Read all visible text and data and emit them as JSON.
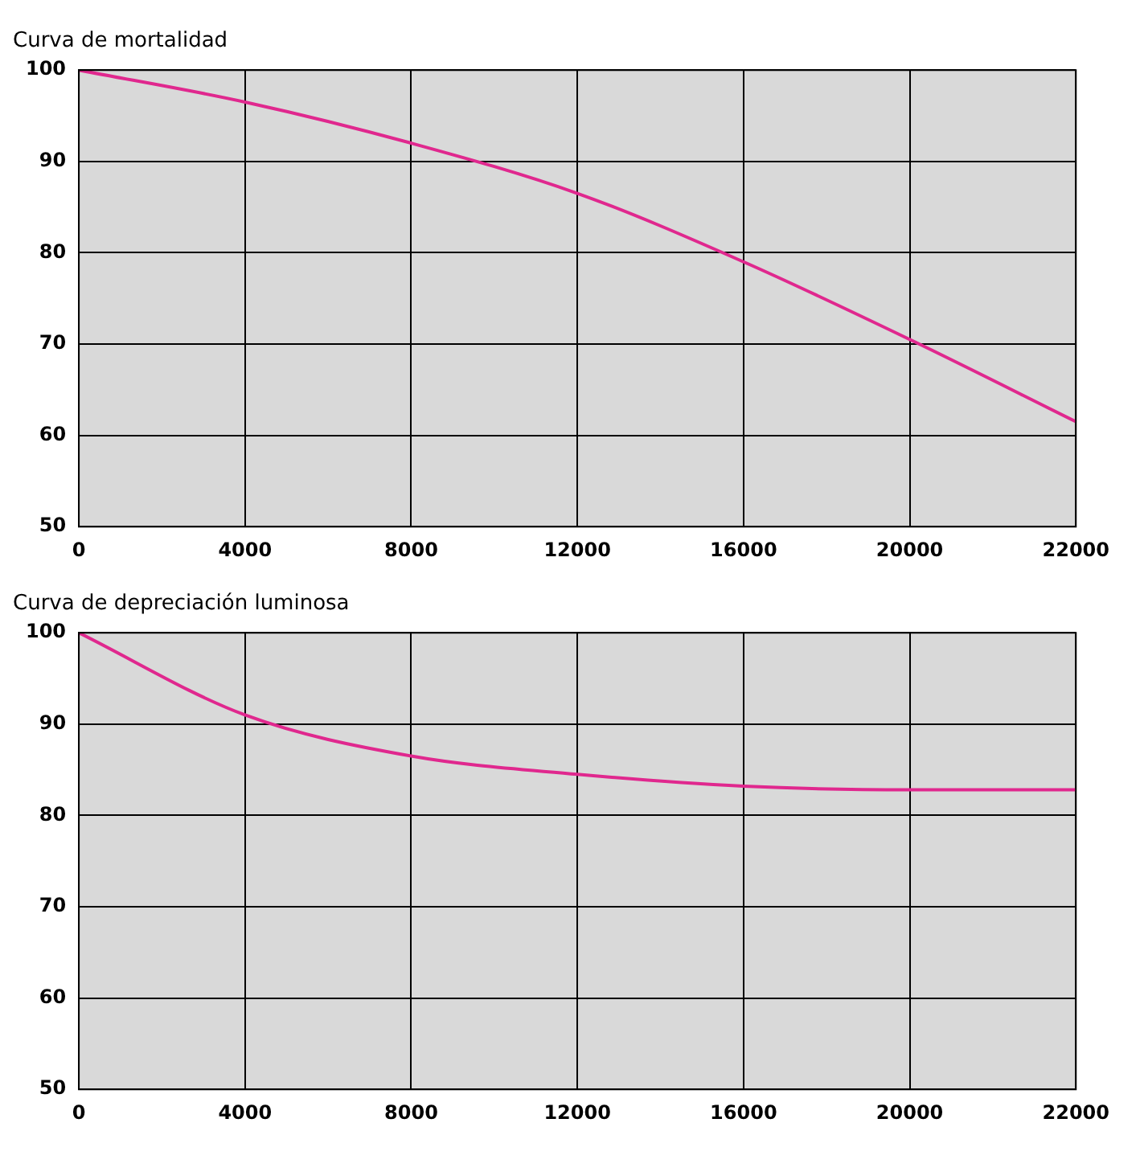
{
  "chart_data": [
    {
      "type": "line",
      "title": "Curva de mortalidad",
      "categories": [
        "0",
        "4000",
        "8000",
        "12000",
        "16000",
        "20000",
        "22000"
      ],
      "series": [
        {
          "color": "#e0288e",
          "values": [
            100,
            96.5,
            92,
            86.5,
            79,
            70.5,
            61.5
          ]
        }
      ],
      "ylim": [
        50,
        100
      ],
      "yticks": [
        50,
        60,
        70,
        80,
        90,
        100
      ],
      "grid": true,
      "legend": false,
      "marker": "none",
      "line_style": "solid"
    },
    {
      "type": "line",
      "title": "Curva de depreciación luminosa",
      "categories": [
        "0",
        "4000",
        "8000",
        "12000",
        "16000",
        "20000",
        "22000"
      ],
      "series": [
        {
          "color": "#e0288e",
          "values": [
            100,
            91,
            86.5,
            84.5,
            83.2,
            82.8,
            82.8
          ]
        }
      ],
      "ylim": [
        50,
        100
      ],
      "yticks": [
        50,
        60,
        70,
        80,
        90,
        100
      ],
      "grid": true,
      "legend": false,
      "marker": "none",
      "line_style": "solid"
    }
  ]
}
